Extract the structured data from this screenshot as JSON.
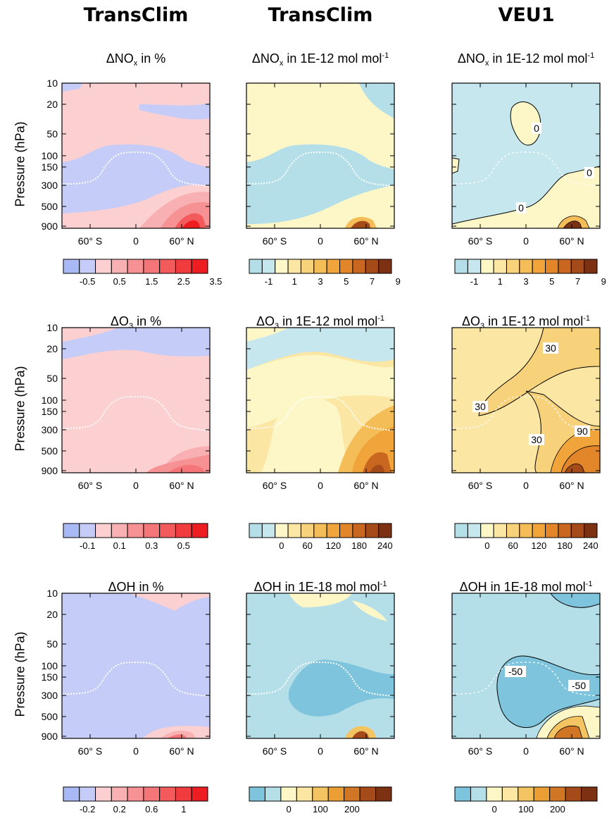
{
  "columns": [
    "TransClim",
    "TransClim",
    "VEU1"
  ],
  "row_ylabel": "Pressure (hPa)",
  "y_ticks": [
    "10",
    "20",
    "50",
    "100",
    "150",
    "300",
    "500",
    "900"
  ],
  "x_ticks": [
    "60° S",
    "0",
    "60° N"
  ],
  "panels": [
    {
      "title_main": "ΔNO",
      "title_sub": "x",
      "title_rest": " in  %",
      "title_sup": "",
      "palette": "bluered",
      "cb_labels": [
        "-0.5",
        "0.5",
        "1.5",
        "2.5",
        "3.5"
      ]
    },
    {
      "title_main": "ΔNO",
      "title_sub": "x",
      "title_rest": " in 1E-12 mol mol",
      "title_sup": "-1",
      "palette": "blueorange",
      "cb_labels": [
        "-1",
        "1",
        "3",
        "5",
        "7",
        "9"
      ]
    },
    {
      "title_main": "ΔNO",
      "title_sub": "x",
      "title_rest": " in 1E-12 mol mol",
      "title_sup": "-1",
      "palette": "blueorange",
      "cb_labels": [
        "-1",
        "1",
        "3",
        "5",
        "7",
        "9"
      ],
      "contour_labels": [
        "0",
        "0",
        "0"
      ]
    },
    {
      "title_main": "ΔO",
      "title_sub": "3",
      "title_rest": " in %",
      "title_sup": "",
      "palette": "bluered",
      "cb_labels": [
        "-0.1",
        "0.1",
        "0.3",
        "0.5"
      ]
    },
    {
      "title_main": "ΔO",
      "title_sub": "3",
      "title_rest": " in 1E-12 mol mol",
      "title_sup": "-1",
      "palette": "blueorange",
      "cb_labels": [
        "0",
        "60",
        "120",
        "180",
        "240"
      ]
    },
    {
      "title_main": "ΔO",
      "title_sub": "3",
      "title_rest": " in 1E-12 mol mol",
      "title_sup": "-1",
      "palette": "blueorange",
      "cb_labels": [
        "0",
        "60",
        "120",
        "180",
        "240"
      ],
      "contour_labels": [
        "30",
        "30",
        "30",
        "90"
      ]
    },
    {
      "title_main": "ΔOH",
      "title_sub": "",
      "title_rest": " in %",
      "title_sup": "",
      "palette": "bluered",
      "cb_labels": [
        "-0.2",
        "0.2",
        "0.6",
        "1"
      ]
    },
    {
      "title_main": "ΔOH",
      "title_sub": "",
      "title_rest": " in 1E-18 mol mol",
      "title_sup": "-1",
      "palette": "blueorange2",
      "cb_labels": [
        "0",
        "100",
        "200"
      ]
    },
    {
      "title_main": "ΔOH",
      "title_sub": "",
      "title_rest": " in 1E-18 mol mol",
      "title_sup": "-1",
      "palette": "blueorange2",
      "cb_labels": [
        "0",
        "100",
        "200"
      ],
      "contour_labels": [
        "-50",
        "-50"
      ]
    }
  ],
  "colors": {
    "bluered": [
      "#a9b9f5",
      "#c4ccf7",
      "#fccfd1",
      "#f9b0b2",
      "#f79294",
      "#f57678",
      "#f35a5c",
      "#f13c3f",
      "#ee1d22"
    ],
    "blueorange": [
      "#b4dfe9",
      "#c6e7ee",
      "#fdf7c8",
      "#fbe6a4",
      "#f8d27b",
      "#f5bd57",
      "#f0a43a",
      "#e3862a",
      "#c9661f",
      "#a54a19",
      "#7d3113"
    ],
    "blueorange2": [
      "#7ec4dc",
      "#b4dfe9",
      "#fdf7c8",
      "#fbe6a4",
      "#f5c462",
      "#ea9e34",
      "#d07624",
      "#a54a19",
      "#7d3113"
    ],
    "tropopause": "#ffffff"
  },
  "chart_data": [
    {
      "type": "heatmap",
      "title": "ΔNOx in  %",
      "x": [
        "60° S",
        "0",
        "60° N"
      ],
      "y": [
        "10",
        "20",
        "50",
        "100",
        "150",
        "300",
        "500",
        "900"
      ],
      "ylabel": "Pressure (hPa)",
      "colorbar": [
        "-0.5",
        "0.5",
        "1.5",
        "2.5",
        "3.5"
      ]
    },
    {
      "type": "heatmap",
      "title": "ΔNOx in 1E-12 mol mol-1",
      "x": [
        "60° S",
        "0",
        "60° N"
      ],
      "y": [
        "10",
        "20",
        "50",
        "100",
        "150",
        "300",
        "500",
        "900"
      ],
      "colorbar": [
        "-1",
        "1",
        "3",
        "5",
        "7",
        "9"
      ]
    },
    {
      "type": "heatmap",
      "title": "ΔNOx in 1E-12 mol mol-1",
      "x": [
        "60° S",
        "0",
        "60° N"
      ],
      "y": [
        "10",
        "20",
        "50",
        "100",
        "150",
        "300",
        "500",
        "900"
      ],
      "colorbar": [
        "-1",
        "1",
        "3",
        "5",
        "7",
        "9"
      ],
      "contours": [
        "0"
      ]
    },
    {
      "type": "heatmap",
      "title": "ΔO3 in %",
      "x": [
        "60° S",
        "0",
        "60° N"
      ],
      "y": [
        "10",
        "20",
        "50",
        "100",
        "150",
        "300",
        "500",
        "900"
      ],
      "ylabel": "Pressure (hPa)",
      "colorbar": [
        "-0.1",
        "0.1",
        "0.3",
        "0.5"
      ]
    },
    {
      "type": "heatmap",
      "title": "ΔO3 in 1E-12 mol mol-1",
      "x": [
        "60° S",
        "0",
        "60° N"
      ],
      "y": [
        "10",
        "20",
        "50",
        "100",
        "150",
        "300",
        "500",
        "900"
      ],
      "colorbar": [
        "0",
        "60",
        "120",
        "180",
        "240"
      ]
    },
    {
      "type": "heatmap",
      "title": "ΔO3 in 1E-12 mol mol-1",
      "x": [
        "60° S",
        "0",
        "60° N"
      ],
      "y": [
        "10",
        "20",
        "50",
        "100",
        "150",
        "300",
        "500",
        "900"
      ],
      "colorbar": [
        "0",
        "60",
        "120",
        "180",
        "240"
      ],
      "contours": [
        "30",
        "90"
      ]
    },
    {
      "type": "heatmap",
      "title": "ΔOH in %",
      "x": [
        "60° S",
        "0",
        "60° N"
      ],
      "y": [
        "10",
        "20",
        "50",
        "100",
        "150",
        "300",
        "500",
        "900"
      ],
      "ylabel": "Pressure (hPa)",
      "colorbar": [
        "-0.2",
        "0.2",
        "0.6",
        "1"
      ]
    },
    {
      "type": "heatmap",
      "title": "ΔOH in 1E-18 mol mol-1",
      "x": [
        "60° S",
        "0",
        "60° N"
      ],
      "y": [
        "10",
        "20",
        "50",
        "100",
        "150",
        "300",
        "500",
        "900"
      ],
      "colorbar": [
        "0",
        "100",
        "200"
      ]
    },
    {
      "type": "heatmap",
      "title": "ΔOH in 1E-18 mol mol-1",
      "x": [
        "60° S",
        "0",
        "60° N"
      ],
      "y": [
        "10",
        "20",
        "50",
        "100",
        "150",
        "300",
        "500",
        "900"
      ],
      "colorbar": [
        "0",
        "100",
        "200"
      ],
      "contours": [
        "-50"
      ]
    }
  ]
}
